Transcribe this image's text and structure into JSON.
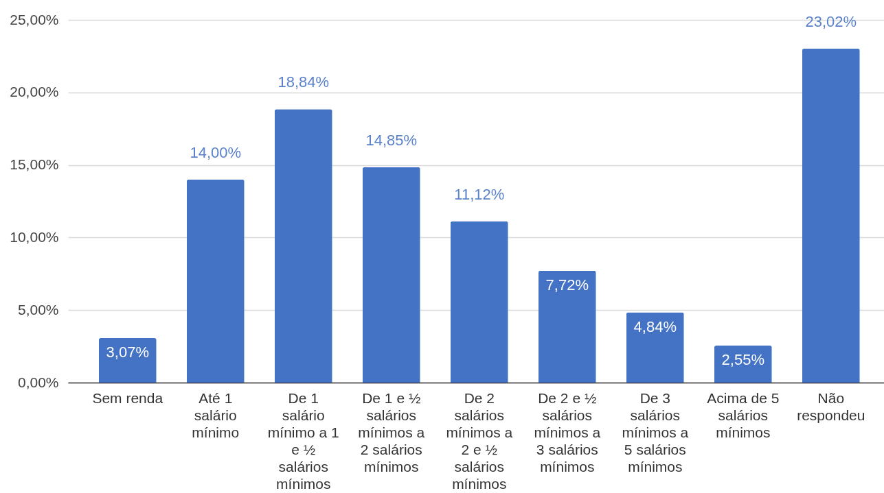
{
  "chart_data": {
    "type": "bar",
    "categories": [
      "Sem renda",
      "Até 1 salário mínimo",
      "De 1 salário mínimo a 1 e ½ salários mínimos",
      "De 1 e ½ salários mínimos a 2 salários mínimos",
      "De 2 salários mínimos a 2 e ½ salários mínimos",
      "De 2 e ½ salários mínimos a 3 salários mínimos",
      "De 3 salários mínimos a 5 salários mínimos",
      "Acima de 5 salários mínimos",
      "Não respondeu"
    ],
    "values": [
      3.07,
      14.0,
      18.84,
      14.85,
      11.12,
      7.72,
      4.84,
      2.55,
      23.02
    ],
    "value_labels": [
      "3,07%",
      "14,00%",
      "18,84%",
      "14,85%",
      "11,12%",
      "7,72%",
      "4,84%",
      "2,55%",
      "23,02%"
    ],
    "color": "#4472c4",
    "ylim": [
      0,
      25
    ],
    "yticks": [
      {
        "value": 0,
        "label": "0,00%"
      },
      {
        "value": 5,
        "label": "5,00%"
      },
      {
        "value": 10,
        "label": "10,00%"
      },
      {
        "value": 15,
        "label": "15,00%"
      },
      {
        "value": 20,
        "label": "20,00%"
      },
      {
        "value": 25,
        "label": "25,00%"
      }
    ],
    "grid": "y"
  }
}
